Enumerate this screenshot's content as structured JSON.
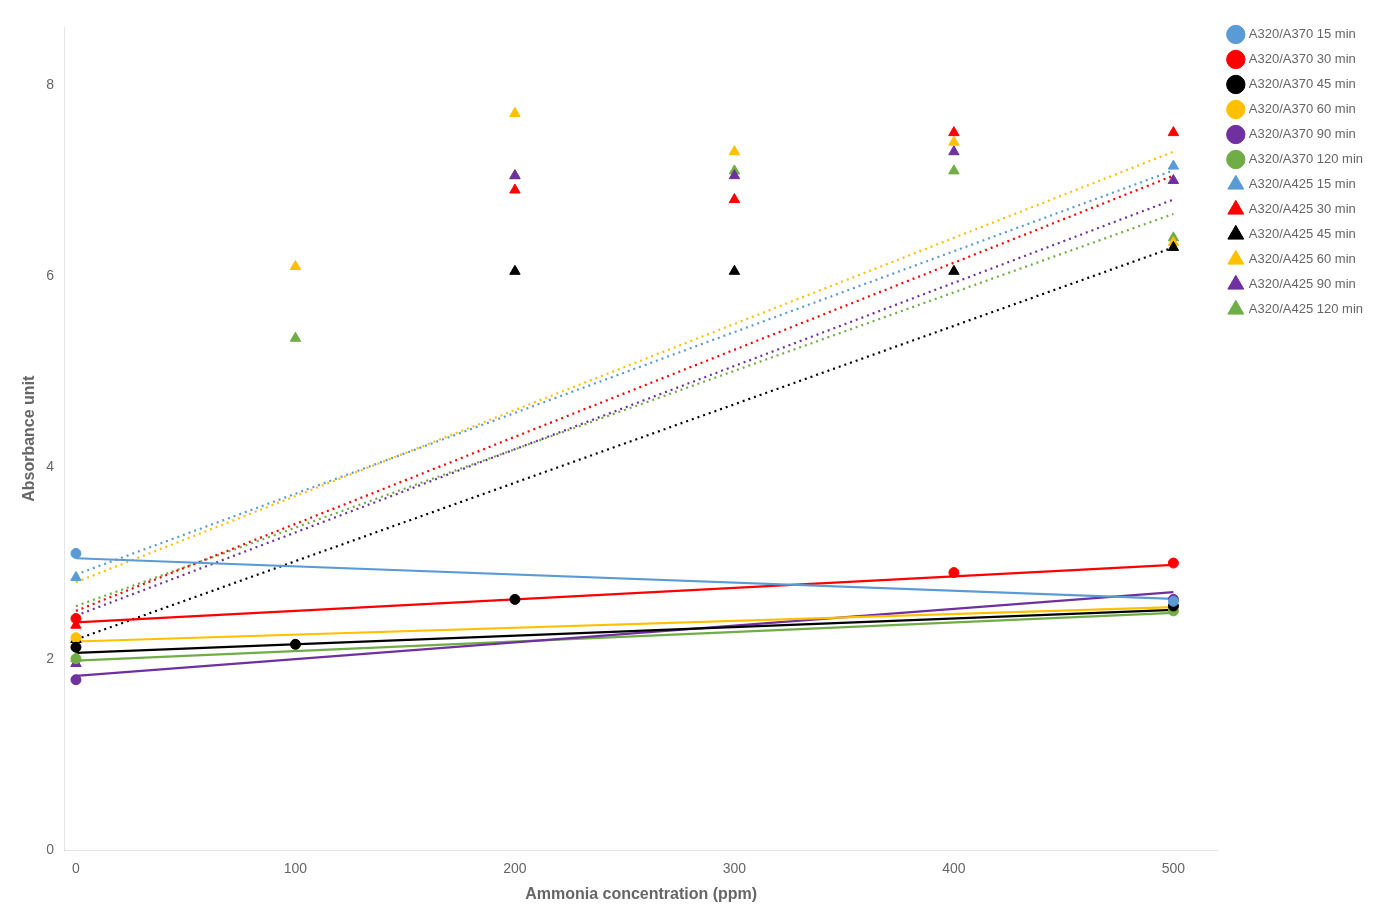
{
  "chart_data": {
    "type": "scatter",
    "xlabel": "Ammonia concentration (ppm)",
    "ylabel": "Absorbance unit",
    "xlim": [
      -5,
      520
    ],
    "ylim": [
      0,
      8.6
    ],
    "xticks": [
      0,
      100,
      200,
      300,
      400,
      500
    ],
    "yticks": [
      0,
      2,
      4,
      6,
      8
    ],
    "grid": false,
    "legend": "upper right outside",
    "x": [
      0,
      100,
      200,
      300,
      400,
      500
    ],
    "series": [
      {
        "type": "line",
        "line_style": "solid",
        "color": "#5b9bd5",
        "x": [
          0,
          500
        ],
        "values": [
          3.05,
          2.625
        ]
      },
      {
        "type": "scatter",
        "marker": "circle",
        "name": "A320/A370 15 min",
        "color": "#5b9bd5",
        "values": [
          3.1,
          null,
          null,
          null,
          null,
          2.6
        ]
      },
      {
        "type": "line",
        "line_style": "solid",
        "color": "#ff0000",
        "x": [
          0,
          500
        ],
        "values": [
          2.38,
          2.98
        ]
      },
      {
        "type": "scatter",
        "marker": "circle",
        "name": "A320/A370 30 min",
        "color": "#ff0000",
        "values": [
          2.42,
          null,
          null,
          null,
          2.9,
          3.0
        ]
      },
      {
        "type": "line",
        "line_style": "solid",
        "color": "#000000",
        "x": [
          0,
          500
        ],
        "values": [
          2.06,
          2.51
        ]
      },
      {
        "type": "scatter",
        "marker": "circle",
        "name": "A320/A370 45 min",
        "color": "#000000",
        "values": [
          2.12,
          2.15,
          2.62,
          null,
          null,
          2.55
        ]
      },
      {
        "type": "line",
        "line_style": "solid",
        "color": "#ffc000",
        "x": [
          0,
          500
        ],
        "values": [
          2.18,
          2.54
        ]
      },
      {
        "type": "scatter",
        "marker": "circle",
        "name": "A320/A370 60 min",
        "color": "#ffc000",
        "values": [
          2.22,
          null,
          null,
          null,
          null,
          2.55
        ]
      },
      {
        "type": "line",
        "line_style": "solid",
        "color": "#7030a0",
        "x": [
          0,
          500
        ],
        "values": [
          1.82,
          2.695
        ]
      },
      {
        "type": "scatter",
        "marker": "circle",
        "name": "A320/A370 90 min",
        "color": "#7030a0",
        "values": [
          1.78,
          null,
          null,
          null,
          null,
          2.62
        ]
      },
      {
        "type": "line",
        "line_style": "solid",
        "color": "#70ad47",
        "x": [
          0,
          500
        ],
        "values": [
          1.98,
          2.48
        ]
      },
      {
        "type": "scatter",
        "marker": "circle",
        "name": "A320/A370 120 min",
        "color": "#70ad47",
        "values": [
          2.0,
          null,
          null,
          null,
          null,
          2.5
        ]
      },
      {
        "type": "line",
        "line_style": "dotted",
        "color": "#5b9bd5",
        "x": [
          0,
          500
        ],
        "values": [
          2.88,
          7.105
        ]
      },
      {
        "type": "scatter",
        "marker": "triangle",
        "name": "A320/A425 15 min",
        "color": "#5b9bd5",
        "values": [
          2.85,
          null,
          null,
          null,
          null,
          7.15
        ]
      },
      {
        "type": "line",
        "line_style": "dotted",
        "color": "#ff0000",
        "x": [
          0,
          500
        ],
        "values": [
          2.5,
          7.05
        ]
      },
      {
        "type": "scatter",
        "marker": "triangle",
        "name": "A320/A425 30 min",
        "color": "#ff0000",
        "values": [
          2.35,
          null,
          6.9,
          6.8,
          7.5,
          7.5
        ]
      },
      {
        "type": "line",
        "line_style": "dotted",
        "color": "#000000",
        "x": [
          0,
          500
        ],
        "values": [
          2.2,
          6.3
        ]
      },
      {
        "type": "scatter",
        "marker": "triangle",
        "name": "A320/A425 45 min",
        "color": "#000000",
        "values": [
          2.2,
          null,
          6.05,
          6.05,
          6.05,
          6.3
        ]
      },
      {
        "type": "line",
        "line_style": "dotted",
        "color": "#ffc000",
        "x": [
          0,
          500
        ],
        "values": [
          2.8,
          7.3
        ]
      },
      {
        "type": "scatter",
        "marker": "triangle",
        "name": "A320/A425 60 min",
        "color": "#ffc000",
        "values": [
          2.2,
          6.1,
          7.7,
          7.3,
          7.4,
          6.35
        ]
      },
      {
        "type": "line",
        "line_style": "dotted",
        "color": "#7030a0",
        "x": [
          0,
          500
        ],
        "values": [
          2.45,
          6.8
        ]
      },
      {
        "type": "scatter",
        "marker": "triangle",
        "name": "A320/A425 90 min",
        "color": "#7030a0",
        "values": [
          1.95,
          null,
          7.05,
          7.05,
          7.3,
          7.0
        ]
      },
      {
        "type": "line",
        "line_style": "dotted",
        "color": "#70ad47",
        "x": [
          0,
          500
        ],
        "values": [
          2.55,
          6.65
        ]
      },
      {
        "type": "scatter",
        "marker": "triangle",
        "name": "A320/A425 120 min",
        "color": "#70ad47",
        "values": [
          2.0,
          5.35,
          7.05,
          7.1,
          7.1,
          6.4
        ]
      }
    ]
  }
}
